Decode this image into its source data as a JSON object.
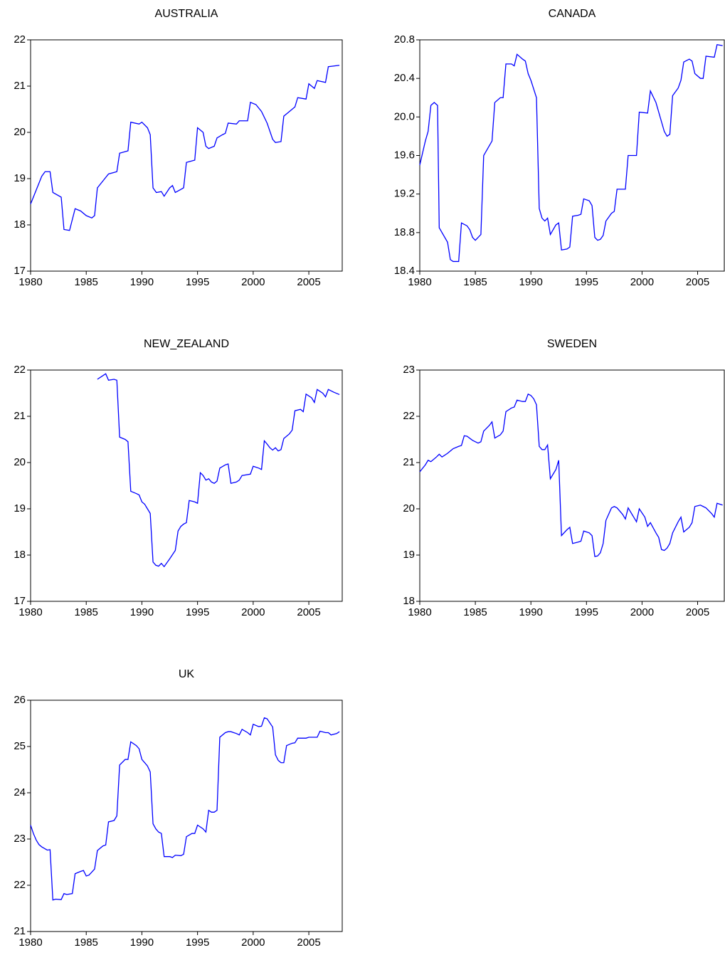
{
  "chart_data": [
    {
      "type": "line",
      "title": "AUSTRALIA",
      "color": "#0000ff",
      "x": [
        1980.0,
        1980.5,
        1981.0,
        1981.3,
        1981.75,
        1982.0,
        1982.75,
        1983.0,
        1983.5,
        1984.0,
        1984.5,
        1985.0,
        1985.5,
        1985.75,
        1986.0,
        1986.5,
        1987.0,
        1987.75,
        1988.0,
        1988.75,
        1989.0,
        1989.75,
        1990.0,
        1990.5,
        1990.75,
        1991.0,
        1991.3,
        1991.75,
        1992.0,
        1992.5,
        1992.75,
        1993.0,
        1993.75,
        1994.0,
        1994.75,
        1995.0,
        1995.5,
        1995.75,
        1996.0,
        1996.5,
        1996.75,
        1997.25,
        1997.5,
        1997.75,
        1998.5,
        1998.75,
        1999.5,
        1999.75,
        2000.25,
        2000.75,
        2001.25,
        2001.75,
        2002.0,
        2002.5,
        2002.75,
        2003.25,
        2003.75,
        2004.0,
        2004.75,
        2005.0,
        2005.5,
        2005.75,
        2006.5,
        2006.75,
        2007.75
      ],
      "values": [
        18.45,
        18.75,
        19.05,
        19.15,
        19.15,
        18.7,
        18.6,
        17.9,
        17.88,
        18.35,
        18.3,
        18.2,
        18.15,
        18.2,
        18.8,
        18.95,
        19.1,
        19.15,
        19.55,
        19.6,
        20.22,
        20.18,
        20.22,
        20.1,
        19.95,
        18.8,
        18.7,
        18.72,
        18.62,
        18.8,
        18.85,
        18.7,
        18.8,
        19.35,
        19.4,
        20.1,
        20.0,
        19.7,
        19.65,
        19.7,
        19.88,
        19.95,
        19.98,
        20.2,
        20.18,
        20.25,
        20.25,
        20.65,
        20.6,
        20.45,
        20.2,
        19.85,
        19.78,
        19.8,
        20.35,
        20.45,
        20.55,
        20.75,
        20.72,
        21.05,
        20.95,
        21.12,
        21.08,
        21.42,
        21.45
      ],
      "xlim": [
        1980,
        2008
      ],
      "xticks": [
        1980,
        1985,
        1990,
        1995,
        2000,
        2005
      ],
      "ylim": [
        17,
        22
      ],
      "yticks": [
        17,
        18,
        19,
        20,
        21,
        22
      ]
    },
    {
      "type": "line",
      "title": "CANADA",
      "color": "#0000ff",
      "x": [
        1980.0,
        1980.5,
        1980.75,
        1981.0,
        1981.3,
        1981.6,
        1981.75,
        1982.5,
        1982.75,
        1983.0,
        1983.5,
        1983.75,
        1984.25,
        1984.5,
        1984.75,
        1985.0,
        1985.5,
        1985.75,
        1986.25,
        1986.5,
        1986.75,
        1987.25,
        1987.5,
        1987.75,
        1988.25,
        1988.5,
        1988.75,
        1989.25,
        1989.5,
        1989.75,
        1990.0,
        1990.5,
        1990.75,
        1991.0,
        1991.25,
        1991.5,
        1991.75,
        1992.25,
        1992.5,
        1992.75,
        1993.25,
        1993.5,
        1993.75,
        1994.25,
        1994.5,
        1994.75,
        1995.25,
        1995.5,
        1995.75,
        1996.0,
        1996.25,
        1996.5,
        1996.75,
        1997.25,
        1997.5,
        1997.75,
        1998.5,
        1998.75,
        1999.5,
        1999.75,
        2000.5,
        2000.75,
        2001.25,
        2001.5,
        2002.0,
        2002.25,
        2002.5,
        2002.75,
        2003.25,
        2003.5,
        2003.75,
        2004.25,
        2004.5,
        2004.75,
        2005.25,
        2005.5,
        2005.75,
        2006.5,
        2006.75,
        2007.25
      ],
      "values": [
        19.5,
        19.75,
        19.85,
        20.12,
        20.15,
        20.12,
        18.85,
        18.7,
        18.52,
        18.5,
        18.5,
        18.9,
        18.87,
        18.83,
        18.75,
        18.72,
        18.78,
        19.6,
        19.7,
        19.75,
        20.15,
        20.2,
        20.2,
        20.55,
        20.55,
        20.53,
        20.65,
        20.6,
        20.58,
        20.45,
        20.38,
        20.2,
        19.05,
        18.95,
        18.92,
        18.95,
        18.78,
        18.88,
        18.9,
        18.62,
        18.63,
        18.65,
        18.97,
        18.98,
        18.99,
        19.15,
        19.13,
        19.08,
        18.75,
        18.72,
        18.73,
        18.77,
        18.92,
        19.0,
        19.02,
        19.25,
        19.25,
        19.6,
        19.6,
        20.05,
        20.04,
        20.27,
        20.15,
        20.05,
        19.85,
        19.8,
        19.82,
        20.22,
        20.3,
        20.38,
        20.57,
        20.6,
        20.58,
        20.45,
        20.4,
        20.4,
        20.63,
        20.62,
        20.75,
        20.74
      ],
      "xlim": [
        1980,
        2007.4
      ],
      "xticks": [
        1980,
        1985,
        1990,
        1995,
        2000,
        2005
      ],
      "ylim": [
        18.4,
        20.8
      ],
      "yticks": [
        {
          "value": 18.4,
          "label": "18.4"
        },
        {
          "value": 18.8,
          "label": "18.8"
        },
        {
          "value": 19.2,
          "label": "19.2"
        },
        {
          "value": 19.6,
          "label": "19.6"
        },
        {
          "value": 20.0,
          "label": "20.0"
        },
        {
          "value": 20.4,
          "label": "20.4"
        },
        {
          "value": 20.8,
          "label": "20.8"
        }
      ]
    },
    {
      "type": "line",
      "title": "NEW_ZEALAND",
      "color": "#0000ff",
      "x": [
        1986.0,
        1986.5,
        1986.75,
        1987.0,
        1987.5,
        1987.75,
        1988.0,
        1988.5,
        1988.75,
        1989.0,
        1989.5,
        1989.75,
        1990.0,
        1990.25,
        1990.5,
        1990.75,
        1991.0,
        1991.25,
        1991.5,
        1991.75,
        1992.0,
        1992.5,
        1993.0,
        1993.25,
        1993.5,
        1993.75,
        1994.0,
        1994.25,
        1994.75,
        1995.0,
        1995.25,
        1995.5,
        1995.75,
        1996.0,
        1996.25,
        1996.5,
        1996.75,
        1997.0,
        1997.5,
        1997.75,
        1998.0,
        1998.5,
        1998.75,
        1999.0,
        1999.75,
        2000.0,
        2000.5,
        2000.75,
        2001.0,
        2001.25,
        2001.5,
        2001.75,
        2002.0,
        2002.25,
        2002.5,
        2002.75,
        2003.25,
        2003.5,
        2003.75,
        2004.25,
        2004.5,
        2004.75,
        2005.25,
        2005.5,
        2005.75,
        2006.25,
        2006.5,
        2006.75,
        2007.25,
        2007.75
      ],
      "values": [
        21.8,
        21.88,
        21.92,
        21.78,
        21.8,
        21.78,
        20.55,
        20.5,
        20.45,
        19.38,
        19.33,
        19.3,
        19.15,
        19.1,
        19.0,
        18.9,
        17.85,
        17.78,
        17.76,
        17.82,
        17.75,
        17.92,
        18.1,
        18.52,
        18.62,
        18.67,
        18.7,
        19.18,
        19.15,
        19.12,
        19.78,
        19.72,
        19.62,
        19.65,
        19.58,
        19.55,
        19.6,
        19.88,
        19.95,
        19.97,
        19.55,
        19.58,
        19.62,
        19.72,
        19.75,
        19.92,
        19.88,
        19.85,
        20.47,
        20.4,
        20.32,
        20.27,
        20.32,
        20.25,
        20.28,
        20.52,
        20.62,
        20.7,
        21.12,
        21.15,
        21.1,
        21.48,
        21.4,
        21.3,
        21.58,
        21.5,
        21.42,
        21.58,
        21.52,
        21.47
      ],
      "xlim": [
        1980,
        2008
      ],
      "xticks": [
        1980,
        1985,
        1990,
        1995,
        2000,
        2005
      ],
      "ylim": [
        17,
        22
      ],
      "yticks": [
        17,
        18,
        19,
        20,
        21,
        22
      ]
    },
    {
      "type": "line",
      "title": "SWEDEN",
      "color": "#0000ff",
      "x": [
        1980.0,
        1980.5,
        1980.75,
        1981.0,
        1981.5,
        1981.75,
        1982.0,
        1982.5,
        1982.75,
        1983.0,
        1983.5,
        1983.75,
        1984.0,
        1984.25,
        1984.75,
        1985.25,
        1985.5,
        1985.75,
        1986.25,
        1986.5,
        1986.75,
        1987.25,
        1987.5,
        1987.75,
        1988.25,
        1988.5,
        1988.75,
        1989.25,
        1989.5,
        1989.75,
        1990.0,
        1990.25,
        1990.5,
        1990.75,
        1991.0,
        1991.25,
        1991.5,
        1991.75,
        1992.25,
        1992.5,
        1992.75,
        1993.25,
        1993.5,
        1993.75,
        1994.25,
        1994.5,
        1994.75,
        1995.25,
        1995.5,
        1995.75,
        1996.0,
        1996.25,
        1996.5,
        1996.75,
        1997.25,
        1997.5,
        1997.75,
        1998.25,
        1998.5,
        1998.75,
        1999.25,
        1999.5,
        1999.75,
        2000.25,
        2000.5,
        2000.75,
        2001.25,
        2001.5,
        2001.75,
        2002.0,
        2002.25,
        2002.5,
        2002.75,
        2003.25,
        2003.5,
        2003.75,
        2004.25,
        2004.5,
        2004.75,
        2005.25,
        2005.5,
        2005.75,
        2006.25,
        2006.5,
        2006.75,
        2007.25
      ],
      "values": [
        20.8,
        20.95,
        21.05,
        21.02,
        21.12,
        21.18,
        21.12,
        21.2,
        21.25,
        21.3,
        21.35,
        21.37,
        21.58,
        21.57,
        21.48,
        21.42,
        21.45,
        21.68,
        21.8,
        21.88,
        21.53,
        21.6,
        21.68,
        22.1,
        22.18,
        22.2,
        22.35,
        22.32,
        22.32,
        22.48,
        22.45,
        22.38,
        22.25,
        21.35,
        21.28,
        21.28,
        21.38,
        20.65,
        20.85,
        21.05,
        19.42,
        19.55,
        19.6,
        19.25,
        19.28,
        19.3,
        19.52,
        19.48,
        19.42,
        18.97,
        18.98,
        19.05,
        19.25,
        19.75,
        20.02,
        20.05,
        20.02,
        19.88,
        19.78,
        20.02,
        19.82,
        19.72,
        20.0,
        19.82,
        19.62,
        19.7,
        19.48,
        19.38,
        19.12,
        19.1,
        19.15,
        19.25,
        19.48,
        19.72,
        19.82,
        19.5,
        19.6,
        19.7,
        20.05,
        20.08,
        20.05,
        20.02,
        19.9,
        19.82,
        20.12,
        20.08
      ],
      "xlim": [
        1980,
        2007.4
      ],
      "xticks": [
        1980,
        1985,
        1990,
        1995,
        2000,
        2005
      ],
      "ylim": [
        18,
        23
      ],
      "yticks": [
        18,
        19,
        20,
        21,
        22,
        23
      ]
    },
    {
      "type": "line",
      "title": "UK",
      "color": "#0000ff",
      "x": [
        1980.0,
        1980.25,
        1980.5,
        1980.75,
        1981.0,
        1981.5,
        1981.75,
        1982.0,
        1982.25,
        1982.75,
        1983.0,
        1983.25,
        1983.75,
        1984.0,
        1984.5,
        1984.75,
        1985.0,
        1985.25,
        1985.75,
        1986.0,
        1986.5,
        1986.75,
        1987.0,
        1987.5,
        1987.75,
        1988.0,
        1988.5,
        1988.75,
        1989.0,
        1989.5,
        1989.75,
        1990.0,
        1990.5,
        1990.75,
        1991.0,
        1991.25,
        1991.5,
        1991.75,
        1992.0,
        1992.5,
        1992.75,
        1993.0,
        1993.5,
        1993.75,
        1994.0,
        1994.5,
        1994.75,
        1995.0,
        1995.5,
        1995.75,
        1996.0,
        1996.25,
        1996.5,
        1996.75,
        1997.0,
        1997.5,
        1997.75,
        1998.0,
        1998.5,
        1998.75,
        1999.0,
        1999.5,
        1999.75,
        2000.0,
        2000.5,
        2000.75,
        2001.0,
        2001.25,
        2001.75,
        2002.0,
        2002.25,
        2002.5,
        2002.75,
        2003.0,
        2003.5,
        2003.75,
        2004.0,
        2004.75,
        2005.0,
        2005.75,
        2006.0,
        2006.5,
        2006.75,
        2007.0,
        2007.5,
        2007.75
      ],
      "values": [
        23.3,
        23.12,
        22.98,
        22.88,
        22.83,
        22.76,
        22.77,
        21.68,
        21.7,
        21.69,
        21.82,
        21.8,
        21.82,
        22.25,
        22.3,
        22.32,
        22.2,
        22.22,
        22.35,
        22.75,
        22.85,
        22.87,
        23.37,
        23.4,
        23.5,
        24.6,
        24.72,
        24.72,
        25.1,
        25.02,
        24.95,
        24.72,
        24.58,
        24.45,
        23.33,
        23.22,
        23.15,
        23.12,
        22.62,
        22.62,
        22.6,
        22.65,
        22.64,
        22.67,
        23.05,
        23.12,
        23.12,
        23.3,
        23.22,
        23.15,
        23.62,
        23.58,
        23.58,
        23.62,
        25.2,
        25.3,
        25.32,
        25.32,
        25.28,
        25.25,
        25.37,
        25.3,
        25.25,
        25.48,
        25.43,
        25.44,
        25.62,
        25.6,
        25.42,
        24.82,
        24.7,
        24.65,
        24.65,
        25.02,
        25.07,
        25.08,
        25.18,
        25.18,
        25.2,
        25.2,
        25.33,
        25.3,
        25.3,
        25.25,
        25.28,
        25.32
      ],
      "xlim": [
        1980,
        2008
      ],
      "xticks": [
        1980,
        1985,
        1990,
        1995,
        2000,
        2005
      ],
      "ylim": [
        21,
        26
      ],
      "yticks": [
        21,
        22,
        23,
        24,
        25,
        26
      ]
    }
  ]
}
